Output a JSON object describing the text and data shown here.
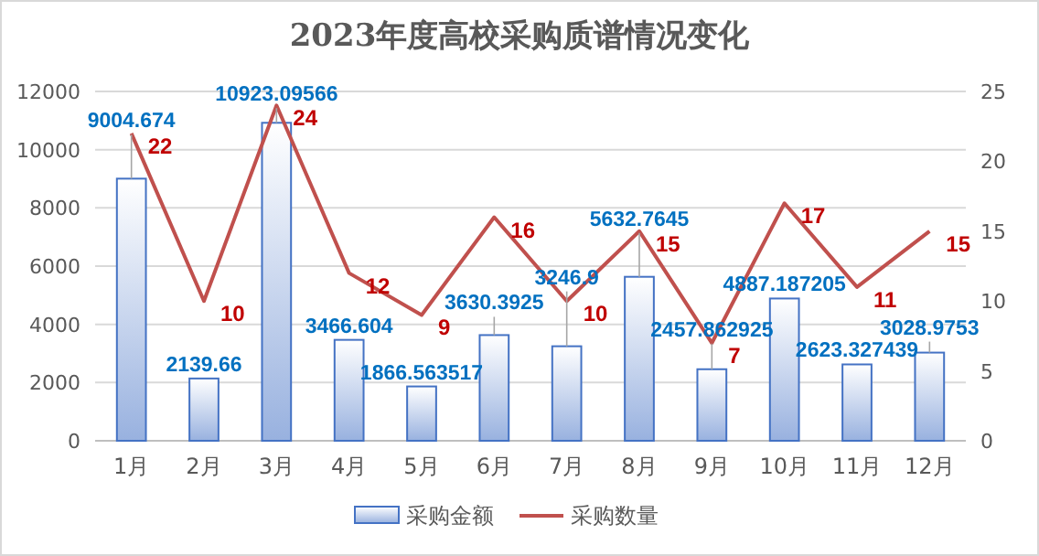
{
  "chart_data": {
    "type": "bar",
    "title": "2023年度高校采购质谱情况变化",
    "categories": [
      "1月",
      "2月",
      "3月",
      "4月",
      "5月",
      "6月",
      "7月",
      "8月",
      "9月",
      "10月",
      "11月",
      "12月"
    ],
    "series": [
      {
        "name": "采购金额",
        "color": "#4472c4",
        "values": [
          9004.674,
          2139.66,
          10923.09566,
          3466.604,
          1866.563517,
          3630.3925,
          3246.9,
          5632.7645,
          2457.862925,
          4887.187205,
          2623.327439,
          3028.9753
        ]
      },
      {
        "name": "采购数量",
        "type": "line",
        "axis": "y2",
        "color": "#c0504d",
        "values": [
          22,
          10,
          24,
          12,
          9,
          16,
          10,
          15,
          7,
          17,
          11,
          15
        ]
      }
    ],
    "ylim": [
      0,
      12000
    ],
    "yticks": [
      0,
      2000,
      4000,
      6000,
      8000,
      10000,
      12000
    ],
    "y2lim": [
      0,
      25
    ],
    "y2ticks": [
      0,
      5,
      10,
      15,
      20,
      25
    ],
    "grid": "y",
    "legend": "bottom",
    "data_labels": true,
    "marker": "none",
    "line_style": "solid"
  }
}
